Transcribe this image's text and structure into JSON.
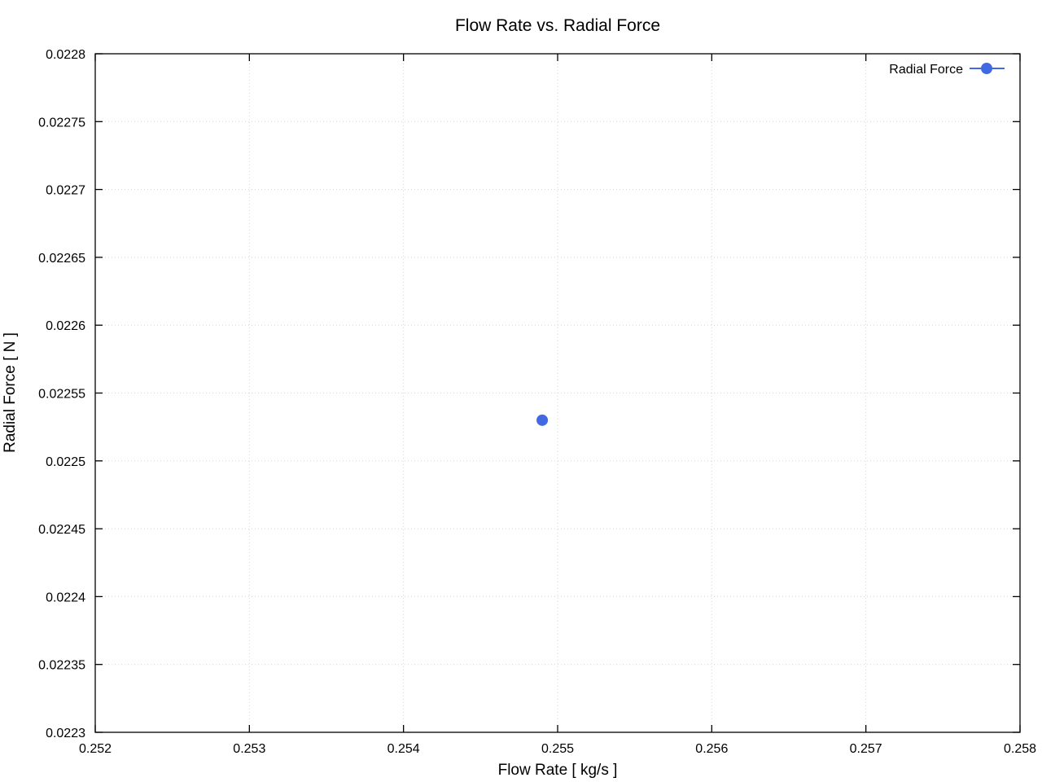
{
  "chart_data": {
    "type": "scatter",
    "title": "Flow Rate vs. Radial Force",
    "xlabel": "Flow Rate [ kg/s ]",
    "ylabel": "Radial Force [ N ]",
    "xlim": [
      0.252,
      0.258
    ],
    "ylim": [
      0.0223,
      0.0228
    ],
    "x_ticks": [
      "0.252",
      "0.253",
      "0.254",
      "0.255",
      "0.256",
      "0.257",
      "0.258"
    ],
    "y_ticks": [
      "0.0223",
      "0.02235",
      "0.0224",
      "0.02245",
      "0.0225",
      "0.02255",
      "0.0226",
      "0.02265",
      "0.0227",
      "0.02275",
      "0.0228"
    ],
    "grid": "dotted",
    "legend_position": "top-right",
    "series": [
      {
        "name": "Radial Force",
        "style": "linespoints",
        "marker": "filled-circle",
        "color": "#4169e1",
        "points": [
          {
            "x": 0.2549,
            "y": 0.02253
          }
        ]
      }
    ],
    "colors": {
      "accent": "#4169e1",
      "grid": "#d4d4d4",
      "border": "#000000",
      "text": "#000000",
      "background": "#ffffff"
    }
  }
}
